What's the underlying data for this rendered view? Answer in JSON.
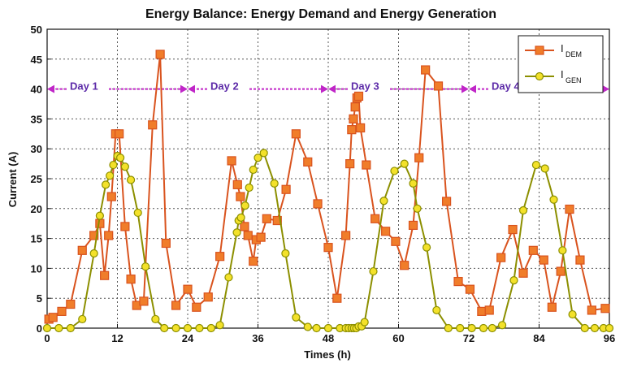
{
  "chart_data": {
    "type": "line",
    "title": "Energy Balance: Energy Demand and Energy Generation",
    "xlabel": "Times (h)",
    "ylabel": "Current (A)",
    "xlim": [
      0,
      96
    ],
    "ylim": [
      0,
      50
    ],
    "xticks": [
      0,
      12,
      24,
      36,
      48,
      60,
      72,
      84,
      96
    ],
    "yticks": [
      0,
      5,
      10,
      15,
      20,
      25,
      30,
      35,
      40,
      45,
      50
    ],
    "grid": true,
    "legend_position": "top-right",
    "day_markers": [
      {
        "label": "Day 1",
        "x_start": 0,
        "x_end": 24,
        "y": 40
      },
      {
        "label": "Day 2",
        "x_start": 24,
        "x_end": 48,
        "y": 40
      },
      {
        "label": "Day 3",
        "x_start": 48,
        "x_end": 72,
        "y": 40
      },
      {
        "label": "Day 4",
        "x_start": 72,
        "x_end": 96,
        "y": 40
      }
    ],
    "series": [
      {
        "name": "I",
        "name_sub": "DEM",
        "color": "#d9531e",
        "fill": "#f07d2a",
        "marker": "square",
        "points": [
          [
            0.3,
            1.5
          ],
          [
            1,
            1.8
          ],
          [
            2.5,
            2.8
          ],
          [
            4,
            4
          ],
          [
            6,
            13
          ],
          [
            8,
            15.5
          ],
          [
            9,
            17.5
          ],
          [
            9.8,
            8.8
          ],
          [
            10.5,
            15.5
          ],
          [
            11,
            22
          ],
          [
            11.7,
            32.5
          ],
          [
            12.3,
            32.5
          ],
          [
            13.3,
            17
          ],
          [
            14.3,
            8.2
          ],
          [
            15.3,
            3.8
          ],
          [
            16.5,
            4.5
          ],
          [
            18,
            34
          ],
          [
            19.3,
            45.8
          ],
          [
            20.3,
            14.2
          ],
          [
            22,
            3.8
          ],
          [
            24,
            6.5
          ],
          [
            25.5,
            3.5
          ],
          [
            27.5,
            5.2
          ],
          [
            29.5,
            12
          ],
          [
            31.5,
            28
          ],
          [
            32.5,
            24
          ],
          [
            33,
            22
          ],
          [
            33.7,
            17
          ],
          [
            34.3,
            15.5
          ],
          [
            35.2,
            11.2
          ],
          [
            35.7,
            14.8
          ],
          [
            36.5,
            15.2
          ],
          [
            37.5,
            18.3
          ],
          [
            39.3,
            18
          ],
          [
            40.8,
            23.2
          ],
          [
            42.5,
            32.5
          ],
          [
            44.5,
            27.8
          ],
          [
            46.2,
            20.8
          ],
          [
            48,
            13.5
          ],
          [
            49.5,
            5
          ],
          [
            51,
            15.5
          ],
          [
            51.7,
            27.5
          ],
          [
            52,
            33.2
          ],
          [
            52.3,
            35
          ],
          [
            52.6,
            37
          ],
          [
            52.9,
            38.5
          ],
          [
            53.2,
            38.8
          ],
          [
            53.5,
            33.5
          ],
          [
            54.5,
            27.3
          ],
          [
            56,
            18.3
          ],
          [
            57.8,
            16.2
          ],
          [
            59.5,
            14.5
          ],
          [
            61,
            10.5
          ],
          [
            62.5,
            17.2
          ],
          [
            63.5,
            28.5
          ],
          [
            64.6,
            43.2
          ],
          [
            66.8,
            40.5
          ],
          [
            68.2,
            21.2
          ],
          [
            70.2,
            7.8
          ],
          [
            72.2,
            6.5
          ],
          [
            74.2,
            2.8
          ],
          [
            75.5,
            3
          ],
          [
            77.5,
            11.8
          ],
          [
            79.5,
            16.5
          ],
          [
            81.3,
            9.2
          ],
          [
            83,
            13
          ],
          [
            84.8,
            11.4
          ],
          [
            86.2,
            3.5
          ],
          [
            87.7,
            9.5
          ],
          [
            89.2,
            19.9
          ],
          [
            91,
            11.4
          ],
          [
            93,
            3
          ],
          [
            95.3,
            3.3
          ]
        ]
      },
      {
        "name": "I",
        "name_sub": "GEN",
        "color": "#8c8f00",
        "fill": "#f3e12a",
        "marker": "circle",
        "points": [
          [
            0,
            0
          ],
          [
            2,
            0
          ],
          [
            4,
            0
          ],
          [
            6,
            1.5
          ],
          [
            8,
            12.5
          ],
          [
            9,
            18.8
          ],
          [
            10,
            24
          ],
          [
            10.7,
            25.5
          ],
          [
            11.3,
            27.3
          ],
          [
            12,
            28.8
          ],
          [
            12.5,
            28.5
          ],
          [
            13.3,
            27
          ],
          [
            14.3,
            24.8
          ],
          [
            15.5,
            19.3
          ],
          [
            16.8,
            10.3
          ],
          [
            18.5,
            1.5
          ],
          [
            20,
            0
          ],
          [
            22,
            0
          ],
          [
            24,
            0
          ],
          [
            26,
            0
          ],
          [
            28,
            0
          ],
          [
            29.5,
            0.5
          ],
          [
            31,
            8.5
          ],
          [
            32.4,
            16
          ],
          [
            32.7,
            18
          ],
          [
            33.1,
            18.5
          ],
          [
            33.8,
            20.5
          ],
          [
            34.5,
            23.5
          ],
          [
            35.2,
            26.5
          ],
          [
            36,
            28.5
          ],
          [
            37,
            29.3
          ],
          [
            38.8,
            24.2
          ],
          [
            40.7,
            12.5
          ],
          [
            42.5,
            1.8
          ],
          [
            44.5,
            0.2
          ],
          [
            46,
            0
          ],
          [
            48,
            0
          ],
          [
            50,
            0
          ],
          [
            51,
            0
          ],
          [
            51.5,
            0
          ],
          [
            52,
            0
          ],
          [
            52.4,
            0
          ],
          [
            52.8,
            0
          ],
          [
            53.2,
            0.3
          ],
          [
            53.7,
            0.3
          ],
          [
            54.2,
            1
          ],
          [
            55.7,
            9.5
          ],
          [
            57.5,
            21.3
          ],
          [
            59.3,
            26.3
          ],
          [
            61,
            27.5
          ],
          [
            62.5,
            24.2
          ],
          [
            63.2,
            20
          ],
          [
            64.8,
            13.5
          ],
          [
            66.5,
            3
          ],
          [
            68.5,
            0
          ],
          [
            70.5,
            0
          ],
          [
            72.5,
            0
          ],
          [
            74.5,
            0
          ],
          [
            76,
            0
          ],
          [
            77.7,
            0.5
          ],
          [
            79.7,
            8
          ],
          [
            81.3,
            19.7
          ],
          [
            83.5,
            27.3
          ],
          [
            85,
            26.7
          ],
          [
            86.5,
            21.5
          ],
          [
            88,
            13
          ],
          [
            89.7,
            2.3
          ],
          [
            91.8,
            0
          ],
          [
            93.5,
            0
          ],
          [
            95,
            0
          ],
          [
            96,
            0
          ]
        ]
      }
    ]
  }
}
